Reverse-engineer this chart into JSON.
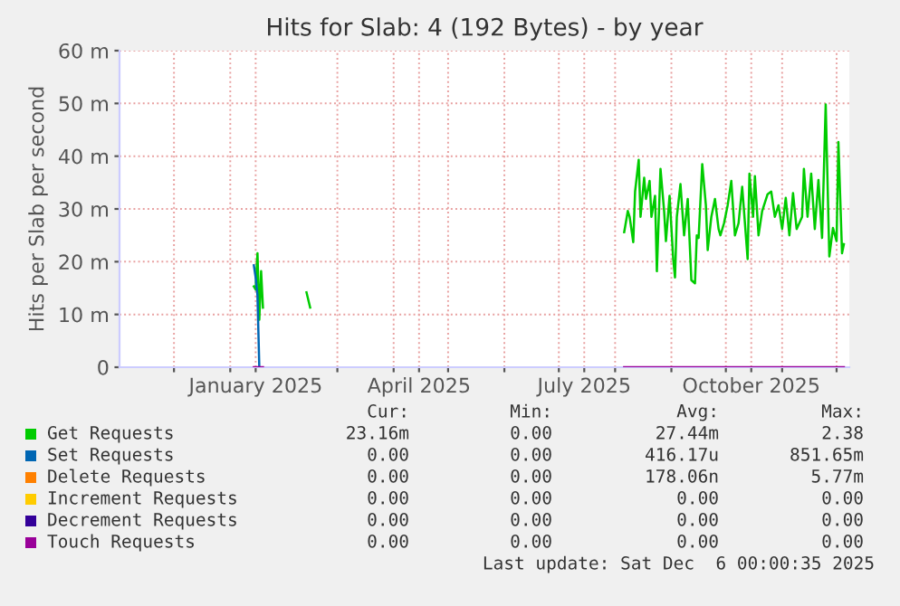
{
  "chart_data": {
    "type": "line",
    "title": "Hits for Slab: 4 (192 Bytes) - by year",
    "ylabel": "Hits per Slab per second",
    "xlim": [
      "2024-11-01",
      "2025-12-08"
    ],
    "ylim": [
      0,
      60
    ],
    "yticks": [
      {
        "value": 0,
        "label": "0"
      },
      {
        "value": 10,
        "label": "10 m"
      },
      {
        "value": 20,
        "label": "20 m"
      },
      {
        "value": 30,
        "label": "30 m"
      },
      {
        "value": 40,
        "label": "40 m"
      },
      {
        "value": 50,
        "label": "50 m"
      },
      {
        "value": 60,
        "label": "60 m"
      }
    ],
    "xticks": [
      {
        "value": "2024-12-01",
        "label": null
      },
      {
        "value": "2025-01-01",
        "label": null
      },
      {
        "value": "2025-01-15",
        "label": "January 2025"
      },
      {
        "value": "2025-03-01",
        "label": null
      },
      {
        "value": "2025-04-01",
        "label": null
      },
      {
        "value": "2025-04-15",
        "label": "April 2025"
      },
      {
        "value": "2025-05-01",
        "label": null
      },
      {
        "value": "2025-06-01",
        "label": null
      },
      {
        "value": "2025-07-01",
        "label": null
      },
      {
        "value": "2025-07-15",
        "label": "July 2025"
      },
      {
        "value": "2025-08-01",
        "label": null
      },
      {
        "value": "2025-09-01",
        "label": null
      },
      {
        "value": "2025-10-01",
        "label": null
      },
      {
        "value": "2025-10-15",
        "label": "October 2025"
      },
      {
        "value": "2025-11-01",
        "label": null
      },
      {
        "value": "2025-12-01",
        "label": null
      }
    ],
    "grid": true,
    "legend": "bottom",
    "marker": "none",
    "line_style": "solid",
    "series": [
      {
        "name": "Get Requests",
        "color": "#00cc00",
        "x": [
          "2025-01-14",
          "2025-01-15",
          "2025-01-16",
          "2025-01-17",
          "2025-01-18",
          "2025-01-19",
          "2025-02-01",
          "2025-02-12",
          "2025-02-14",
          "2025-07-01",
          "2025-08-06",
          "2025-08-08",
          "2025-08-09",
          "2025-08-11",
          "2025-08-12",
          "2025-08-14",
          "2025-08-15",
          "2025-08-17",
          "2025-08-18",
          "2025-08-20",
          "2025-08-21",
          "2025-08-23",
          "2025-08-24",
          "2025-08-26",
          "2025-08-28",
          "2025-08-29",
          "2025-08-31",
          "2025-09-02",
          "2025-09-03",
          "2025-09-04",
          "2025-09-06",
          "2025-09-08",
          "2025-09-10",
          "2025-09-12",
          "2025-09-14",
          "2025-09-15",
          "2025-09-16",
          "2025-09-18",
          "2025-09-20",
          "2025-09-21",
          "2025-09-23",
          "2025-09-25",
          "2025-09-27",
          "2025-09-28",
          "2025-09-30",
          "2025-10-02",
          "2025-10-04",
          "2025-10-06",
          "2025-10-08",
          "2025-10-10",
          "2025-10-13",
          "2025-10-14",
          "2025-10-16",
          "2025-10-17",
          "2025-10-19",
          "2025-10-21",
          "2025-10-24",
          "2025-10-26",
          "2025-10-28",
          "2025-10-30",
          "2025-11-01",
          "2025-11-03",
          "2025-11-05",
          "2025-11-07",
          "2025-11-09",
          "2025-11-12",
          "2025-11-13",
          "2025-11-15",
          "2025-11-17",
          "2025-11-19",
          "2025-11-21",
          "2025-11-23",
          "2025-11-25",
          "2025-11-27",
          "2025-11-29",
          "2025-12-01",
          "2025-12-02",
          "2025-12-04",
          "2025-12-05"
        ],
        "values": [
          15.3,
          14.7,
          21.6,
          9.0,
          18.2,
          11.3,
          null,
          14.2,
          11.3,
          null,
          25.6,
          29.6,
          28.5,
          23.7,
          33.3,
          39.3,
          28.5,
          35.9,
          31.9,
          35.3,
          28.5,
          32.5,
          18.2,
          37.6,
          29.6,
          23.9,
          32.5,
          20.5,
          17.0,
          28.5,
          34.7,
          25.0,
          31.9,
          16.5,
          15.9,
          25.0,
          24.5,
          38.5,
          30.7,
          22.2,
          28.5,
          31.9,
          26.2,
          25.0,
          27.3,
          30.7,
          35.3,
          25.0,
          27.3,
          34.2,
          20.5,
          36.7,
          28.5,
          36.2,
          25.0,
          29.6,
          32.8,
          33.3,
          28.5,
          30.7,
          26.2,
          32.1,
          25.0,
          33.0,
          26.2,
          28.5,
          37.6,
          28.5,
          36.7,
          26.2,
          35.5,
          24.5,
          49.8,
          21.0,
          26.4,
          23.9,
          42.7,
          21.6,
          23.3
        ]
      },
      {
        "name": "Set Requests",
        "color": "#0066b3",
        "x": [
          "2025-01-14",
          "2025-01-15",
          "2025-01-16",
          "2025-01-17"
        ],
        "values": [
          19.3,
          17.0,
          13.6,
          0
        ]
      },
      {
        "name": "Delete Requests",
        "color": "#ff8000"
      },
      {
        "name": "Increment Requests",
        "color": "#ffcc00"
      },
      {
        "name": "Decrement Requests",
        "color": "#330099"
      },
      {
        "name": "Touch Requests",
        "color": "#990099",
        "x": [
          "2025-01-14",
          "2025-01-19",
          "2025-03-01",
          "2025-08-06",
          "2025-12-05"
        ],
        "values": [
          0,
          0,
          null,
          0,
          0
        ]
      }
    ],
    "annotations": [
      "Cur:",
      "Min:",
      "Avg:",
      "Max:",
      "23.16m",
      "0.00",
      "27.44m",
      "2.38",
      "0.00",
      "0.00",
      "416.17u",
      "851.65m",
      "0.00",
      "0.00",
      "178.06n",
      "5.77m",
      "0.00",
      "0.00",
      "0.00",
      "0.00",
      "0.00",
      "0.00",
      "0.00",
      "0.00",
      "0.00",
      "0.00",
      "0.00",
      "0.00",
      "Last update: Sat Dec  6 00:00:35 2025"
    ]
  }
}
